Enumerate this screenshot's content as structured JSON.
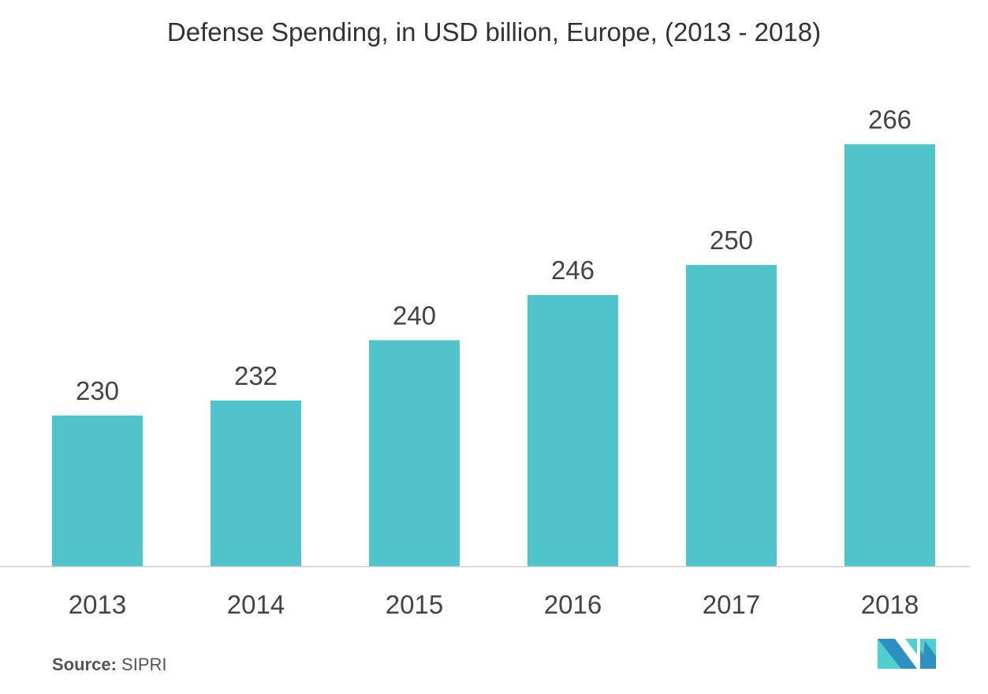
{
  "chart_data": {
    "type": "bar",
    "title": "Defense Spending, in USD billion, Europe, (2013 - 2018)",
    "categories": [
      "2013",
      "2014",
      "2015",
      "2016",
      "2017",
      "2018"
    ],
    "values": [
      230,
      232,
      240,
      246,
      250,
      266
    ],
    "xlabel": "",
    "ylabel": "",
    "ylim": [
      210,
      270
    ],
    "grid": false,
    "bar_color": "#50C4CB"
  },
  "source": {
    "label": "Source:",
    "value": "SIPRI"
  },
  "logo": {
    "colors": [
      "#2E8FC2",
      "#4ECFD0"
    ]
  }
}
